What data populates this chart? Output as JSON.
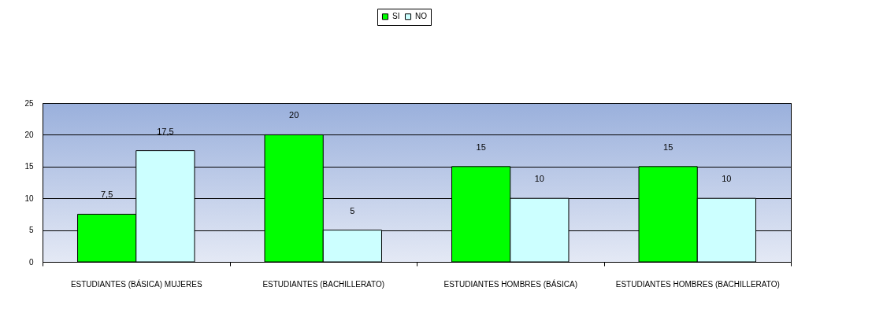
{
  "chart_data": {
    "type": "bar",
    "categories": [
      "ESTUDIANTES (BÁSICA) MUJERES",
      "ESTUDIANTES (BACHILLERATO)",
      "ESTUDIANTES HOMBRES (BÁSICA)",
      "ESTUDIANTES HOMBRES (BACHILLERATO)"
    ],
    "series": [
      {
        "name": "SI",
        "color": "#00ff00",
        "values": [
          7.5,
          20,
          15,
          15
        ],
        "value_labels": [
          "7,5",
          "20",
          "15",
          "15"
        ]
      },
      {
        "name": "NO",
        "color": "#ccffff",
        "values": [
          17.5,
          5,
          10,
          10
        ],
        "value_labels": [
          "17,5",
          "5",
          "10",
          "10"
        ]
      }
    ],
    "ylim": [
      0,
      25
    ],
    "yticks": [
      0,
      5,
      10,
      15,
      20,
      25
    ],
    "grid": "y",
    "legend": "top"
  }
}
